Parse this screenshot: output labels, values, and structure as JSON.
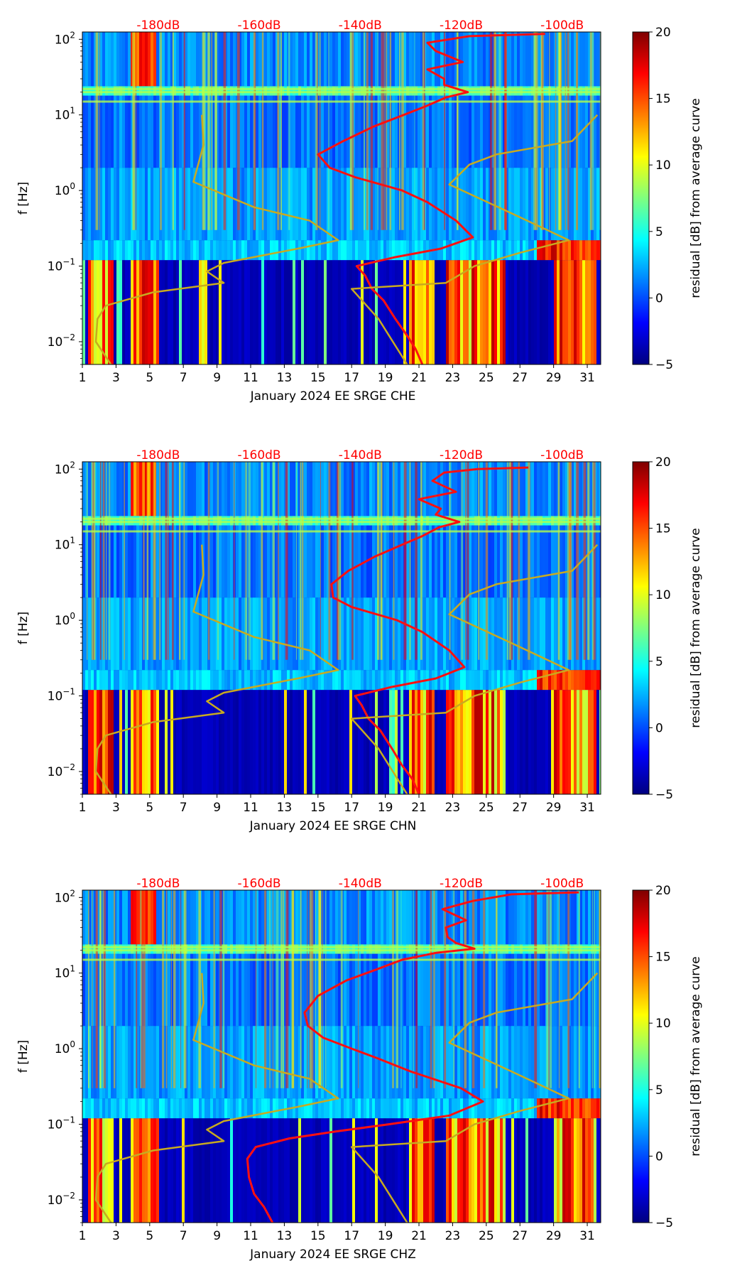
{
  "colors": {
    "jet": [
      "#00007f",
      "#0000ff",
      "#007fff",
      "#00ffff",
      "#7fff7f",
      "#ffff00",
      "#ff7f00",
      "#ff0000",
      "#7f0000"
    ],
    "curve_red": "#ff1010",
    "curve_olive": "#c8aa20",
    "db_label": "#ff0000"
  },
  "chart_data": [
    {
      "type": "heatmap",
      "id": "che",
      "xlabel": "January 2024 EE SRGE  CHE",
      "ylabel": "f [Hz]",
      "x_ticks": [
        "1",
        "3",
        "5",
        "7",
        "9",
        "11",
        "13",
        "15",
        "17",
        "19",
        "21",
        "23",
        "25",
        "27",
        "29",
        "31"
      ],
      "x_range": [
        1,
        31.8
      ],
      "y_ticks": [
        "10^-2",
        "10^-1",
        "10^0",
        "10^1",
        "10^2"
      ],
      "y_range": [
        0.005,
        125
      ],
      "db_ticks": [
        "-180dB",
        "-160dB",
        "-140dB",
        "-120dB",
        "-100dB"
      ],
      "db_tick_day": [
        6.1,
        12.1,
        18.1,
        24.1,
        30.1
      ],
      "colorbar": {
        "label": "residual [dB] from average curve",
        "ticks": [
          "20",
          "15",
          "10",
          "5",
          "0",
          "−5"
        ],
        "range": [
          -5,
          20
        ]
      },
      "series": [
        {
          "name": "red curve",
          "points": [
            [
              21.2,
              0.005
            ],
            [
              20.8,
              0.008
            ],
            [
              20.3,
              0.012
            ],
            [
              19.6,
              0.02
            ],
            [
              18.9,
              0.035
            ],
            [
              18.2,
              0.05
            ],
            [
              17.8,
              0.075
            ],
            [
              17.3,
              0.1
            ],
            [
              19.5,
              0.13
            ],
            [
              22.3,
              0.17
            ],
            [
              24.2,
              0.24
            ],
            [
              23.2,
              0.4
            ],
            [
              21.5,
              0.7
            ],
            [
              20.0,
              1.0
            ],
            [
              17.2,
              1.5
            ],
            [
              15.7,
              2.0
            ],
            [
              15.0,
              3.0
            ],
            [
              16.5,
              4.5
            ],
            [
              18.3,
              7.0
            ],
            [
              20.1,
              10.0
            ],
            [
              21.4,
              13.0
            ],
            [
              22.6,
              17.0
            ],
            [
              23.9,
              20.0
            ],
            [
              22.5,
              25.0
            ],
            [
              22.5,
              30.0
            ],
            [
              21.5,
              40.0
            ],
            [
              23.6,
              50.0
            ],
            [
              22.0,
              70.0
            ],
            [
              21.5,
              90.0
            ],
            [
              24.0,
              110.0
            ],
            [
              28.5,
              118.0
            ]
          ]
        },
        {
          "name": "olive curve",
          "points": [
            [
              2.7,
              0.005
            ],
            [
              1.8,
              0.01
            ],
            [
              1.9,
              0.02
            ],
            [
              2.4,
              0.03
            ],
            [
              5.2,
              0.045
            ],
            [
              9.4,
              0.06
            ],
            [
              8.4,
              0.085
            ],
            [
              9.4,
              0.11
            ],
            [
              13.8,
              0.17
            ],
            [
              16.2,
              0.22
            ],
            [
              14.5,
              0.4
            ],
            [
              11.2,
              0.6
            ],
            [
              7.6,
              1.3
            ],
            [
              8.2,
              4.0
            ],
            [
              8.1,
              10.0
            ]
          ]
        },
        {
          "name": "olive curve right",
          "points": [
            [
              20.3,
              0.005
            ],
            [
              18.6,
              0.02
            ],
            [
              17.0,
              0.05
            ],
            [
              22.6,
              0.06
            ],
            [
              24.3,
              0.1
            ],
            [
              27.0,
              0.15
            ],
            [
              29.9,
              0.22
            ],
            [
              26.5,
              0.5
            ],
            [
              22.8,
              1.2
            ],
            [
              24.0,
              2.2
            ],
            [
              25.6,
              3.0
            ],
            [
              30.1,
              4.5
            ],
            [
              31.6,
              10.0
            ]
          ]
        }
      ]
    },
    {
      "type": "heatmap",
      "id": "chn",
      "xlabel": "January 2024 EE SRGE  CHN",
      "ylabel": "f [Hz]",
      "x_ticks": [
        "1",
        "3",
        "5",
        "7",
        "9",
        "11",
        "13",
        "15",
        "17",
        "19",
        "21",
        "23",
        "25",
        "27",
        "29",
        "31"
      ],
      "x_range": [
        1,
        31.8
      ],
      "y_ticks": [
        "10^-2",
        "10^-1",
        "10^0",
        "10^1",
        "10^2"
      ],
      "y_range": [
        0.005,
        125
      ],
      "db_ticks": [
        "-180dB",
        "-160dB",
        "-140dB",
        "-120dB",
        "-100dB"
      ],
      "db_tick_day": [
        6.1,
        12.1,
        18.1,
        24.1,
        30.1
      ],
      "colorbar": {
        "label": "residual [dB] from average curve",
        "ticks": [
          "20",
          "15",
          "10",
          "5",
          "0",
          "−5"
        ],
        "range": [
          -5,
          20
        ]
      },
      "series": [
        {
          "name": "red curve",
          "points": [
            [
              21.0,
              0.005
            ],
            [
              20.6,
              0.008
            ],
            [
              20.0,
              0.012
            ],
            [
              19.4,
              0.02
            ],
            [
              18.7,
              0.035
            ],
            [
              18.0,
              0.05
            ],
            [
              17.6,
              0.075
            ],
            [
              17.2,
              0.1
            ],
            [
              19.3,
              0.13
            ],
            [
              22.0,
              0.17
            ],
            [
              23.7,
              0.24
            ],
            [
              22.8,
              0.4
            ],
            [
              21.2,
              0.7
            ],
            [
              19.7,
              1.0
            ],
            [
              17.0,
              1.5
            ],
            [
              15.9,
              2.0
            ],
            [
              15.8,
              3.0
            ],
            [
              16.8,
              4.5
            ],
            [
              18.4,
              7.0
            ],
            [
              20.0,
              10.0
            ],
            [
              21.2,
              13.0
            ],
            [
              22.2,
              17.0
            ],
            [
              23.4,
              20.0
            ],
            [
              22.0,
              25.0
            ],
            [
              22.3,
              30.0
            ],
            [
              21.0,
              40.0
            ],
            [
              23.2,
              50.0
            ],
            [
              21.8,
              70.0
            ],
            [
              22.5,
              90.0
            ],
            [
              24.5,
              100.0
            ],
            [
              27.5,
              105.0
            ]
          ]
        },
        {
          "name": "olive curve",
          "points": [
            [
              2.7,
              0.005
            ],
            [
              1.8,
              0.01
            ],
            [
              1.9,
              0.02
            ],
            [
              2.4,
              0.03
            ],
            [
              5.2,
              0.045
            ],
            [
              9.4,
              0.06
            ],
            [
              8.4,
              0.085
            ],
            [
              9.4,
              0.11
            ],
            [
              13.8,
              0.17
            ],
            [
              16.2,
              0.22
            ],
            [
              14.5,
              0.4
            ],
            [
              11.2,
              0.6
            ],
            [
              7.6,
              1.3
            ],
            [
              8.2,
              4.0
            ],
            [
              8.1,
              10.0
            ]
          ]
        },
        {
          "name": "olive curve right",
          "points": [
            [
              20.3,
              0.005
            ],
            [
              18.6,
              0.02
            ],
            [
              17.0,
              0.05
            ],
            [
              22.6,
              0.06
            ],
            [
              24.3,
              0.1
            ],
            [
              27.0,
              0.15
            ],
            [
              29.9,
              0.22
            ],
            [
              26.5,
              0.5
            ],
            [
              22.8,
              1.2
            ],
            [
              24.0,
              2.2
            ],
            [
              25.6,
              3.0
            ],
            [
              30.1,
              4.5
            ],
            [
              31.6,
              10.0
            ]
          ]
        }
      ]
    },
    {
      "type": "heatmap",
      "id": "chz",
      "xlabel": "January 2024 EE SRGE  CHZ",
      "ylabel": "f [Hz]",
      "x_ticks": [
        "1",
        "3",
        "5",
        "7",
        "9",
        "11",
        "13",
        "15",
        "17",
        "19",
        "21",
        "23",
        "25",
        "27",
        "29",
        "31"
      ],
      "x_range": [
        1,
        31.8
      ],
      "y_ticks": [
        "10^-2",
        "10^-1",
        "10^0",
        "10^1",
        "10^2"
      ],
      "y_range": [
        0.005,
        125
      ],
      "db_ticks": [
        "-180dB",
        "-160dB",
        "-140dB",
        "-120dB",
        "-100dB"
      ],
      "db_tick_day": [
        6.1,
        12.1,
        18.1,
        24.1,
        30.1
      ],
      "colorbar": {
        "label": "residual [dB] from average curve",
        "ticks": [
          "20",
          "15",
          "10",
          "5",
          "0",
          "−5"
        ],
        "range": [
          -5,
          20
        ]
      },
      "series": [
        {
          "name": "red curve",
          "points": [
            [
              12.3,
              0.005
            ],
            [
              11.8,
              0.008
            ],
            [
              11.2,
              0.012
            ],
            [
              10.9,
              0.02
            ],
            [
              10.8,
              0.035
            ],
            [
              11.3,
              0.05
            ],
            [
              13.3,
              0.065
            ],
            [
              16.0,
              0.08
            ],
            [
              19.2,
              0.1
            ],
            [
              22.8,
              0.13
            ],
            [
              24.8,
              0.2
            ],
            [
              23.5,
              0.3
            ],
            [
              20.5,
              0.5
            ],
            [
              18.5,
              0.75
            ],
            [
              17.0,
              1.0
            ],
            [
              15.3,
              1.4
            ],
            [
              14.4,
              2.0
            ],
            [
              14.2,
              3.0
            ],
            [
              15.0,
              5.0
            ],
            [
              16.7,
              8.0
            ],
            [
              18.4,
              11.0
            ],
            [
              20.0,
              15.0
            ],
            [
              22.0,
              18.5
            ],
            [
              24.3,
              21.0
            ],
            [
              23.2,
              25.0
            ],
            [
              22.7,
              30.0
            ],
            [
              22.6,
              40.0
            ],
            [
              23.8,
              50.0
            ],
            [
              22.4,
              70.0
            ],
            [
              24.2,
              90.0
            ],
            [
              26.5,
              110.0
            ],
            [
              30.5,
              117.0
            ]
          ]
        },
        {
          "name": "olive curve",
          "points": [
            [
              2.7,
              0.005
            ],
            [
              1.8,
              0.01
            ],
            [
              1.9,
              0.02
            ],
            [
              2.4,
              0.03
            ],
            [
              5.2,
              0.045
            ],
            [
              9.4,
              0.06
            ],
            [
              8.4,
              0.085
            ],
            [
              9.4,
              0.11
            ],
            [
              13.8,
              0.17
            ],
            [
              16.2,
              0.22
            ],
            [
              14.5,
              0.4
            ],
            [
              11.2,
              0.6
            ],
            [
              7.6,
              1.3
            ],
            [
              8.2,
              4.0
            ],
            [
              8.1,
              10.0
            ]
          ]
        },
        {
          "name": "olive curve right",
          "points": [
            [
              20.3,
              0.005
            ],
            [
              18.6,
              0.02
            ],
            [
              17.0,
              0.05
            ],
            [
              22.6,
              0.06
            ],
            [
              24.3,
              0.1
            ],
            [
              27.0,
              0.15
            ],
            [
              29.9,
              0.22
            ],
            [
              26.5,
              0.5
            ],
            [
              22.8,
              1.2
            ],
            [
              24.0,
              2.2
            ],
            [
              25.6,
              3.0
            ],
            [
              30.1,
              4.5
            ],
            [
              31.6,
              10.0
            ]
          ]
        }
      ]
    }
  ]
}
